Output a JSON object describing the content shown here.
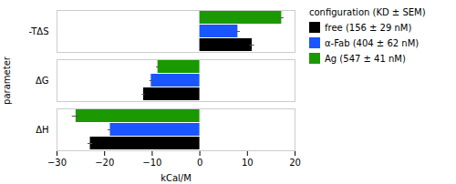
{
  "chart_data": {
    "type": "bar",
    "orientation": "horizontal",
    "categories": [
      "ΔH",
      "ΔG",
      "-TΔS"
    ],
    "series": [
      {
        "name": "free (156 ± 29 nM)",
        "color": "#000000",
        "values": [
          -23.0,
          -11.8,
          11.0
        ],
        "errors": [
          0.5,
          0.3,
          0.5
        ]
      },
      {
        "name": "α-Fab (404 ± 62 nM)",
        "color": "#1a56ff",
        "values": [
          -18.8,
          -10.2,
          8.0
        ],
        "errors": [
          0.5,
          0.3,
          0.5
        ]
      },
      {
        "name": "Ag (547 ± 41 nM)",
        "color": "#1a9900",
        "values": [
          -26.0,
          -8.8,
          17.2
        ],
        "errors": [
          0.8,
          0.3,
          0.5
        ]
      }
    ],
    "xlabel": "kCal/M",
    "ylabel": "parameter",
    "xlim": [
      -30,
      20
    ],
    "xticks": [
      -30,
      -20,
      -10,
      0,
      10,
      20
    ],
    "legend": "right",
    "legend_title": "configuration (KD ± SEM)",
    "grid": false
  }
}
